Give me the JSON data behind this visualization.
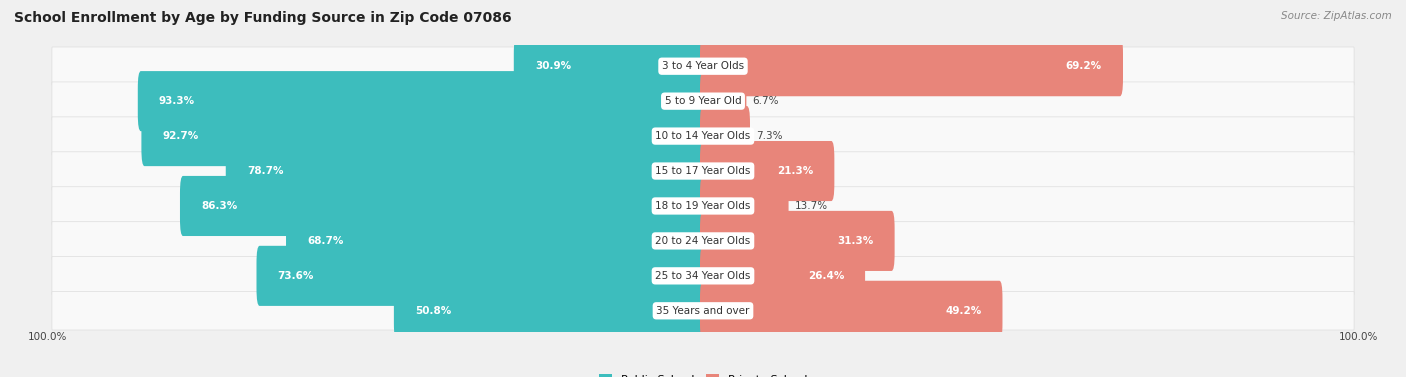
{
  "title": "School Enrollment by Age by Funding Source in Zip Code 07086",
  "source": "Source: ZipAtlas.com",
  "categories": [
    "3 to 4 Year Olds",
    "5 to 9 Year Old",
    "10 to 14 Year Olds",
    "15 to 17 Year Olds",
    "18 to 19 Year Olds",
    "20 to 24 Year Olds",
    "25 to 34 Year Olds",
    "35 Years and over"
  ],
  "public_values": [
    30.9,
    93.3,
    92.7,
    78.7,
    86.3,
    68.7,
    73.6,
    50.8
  ],
  "private_values": [
    69.2,
    6.7,
    7.3,
    21.3,
    13.7,
    31.3,
    26.4,
    49.2
  ],
  "public_color": "#3dbdbd",
  "private_color": "#e8857a",
  "bg_color": "#f0f0f0",
  "row_bg_even": "#ffffff",
  "row_bg_odd": "#f8f8f8",
  "title_fontsize": 10,
  "source_fontsize": 7.5,
  "bar_label_fontsize": 7.5,
  "category_fontsize": 7.5,
  "legend_fontsize": 8,
  "axis_label_fontsize": 7.5
}
